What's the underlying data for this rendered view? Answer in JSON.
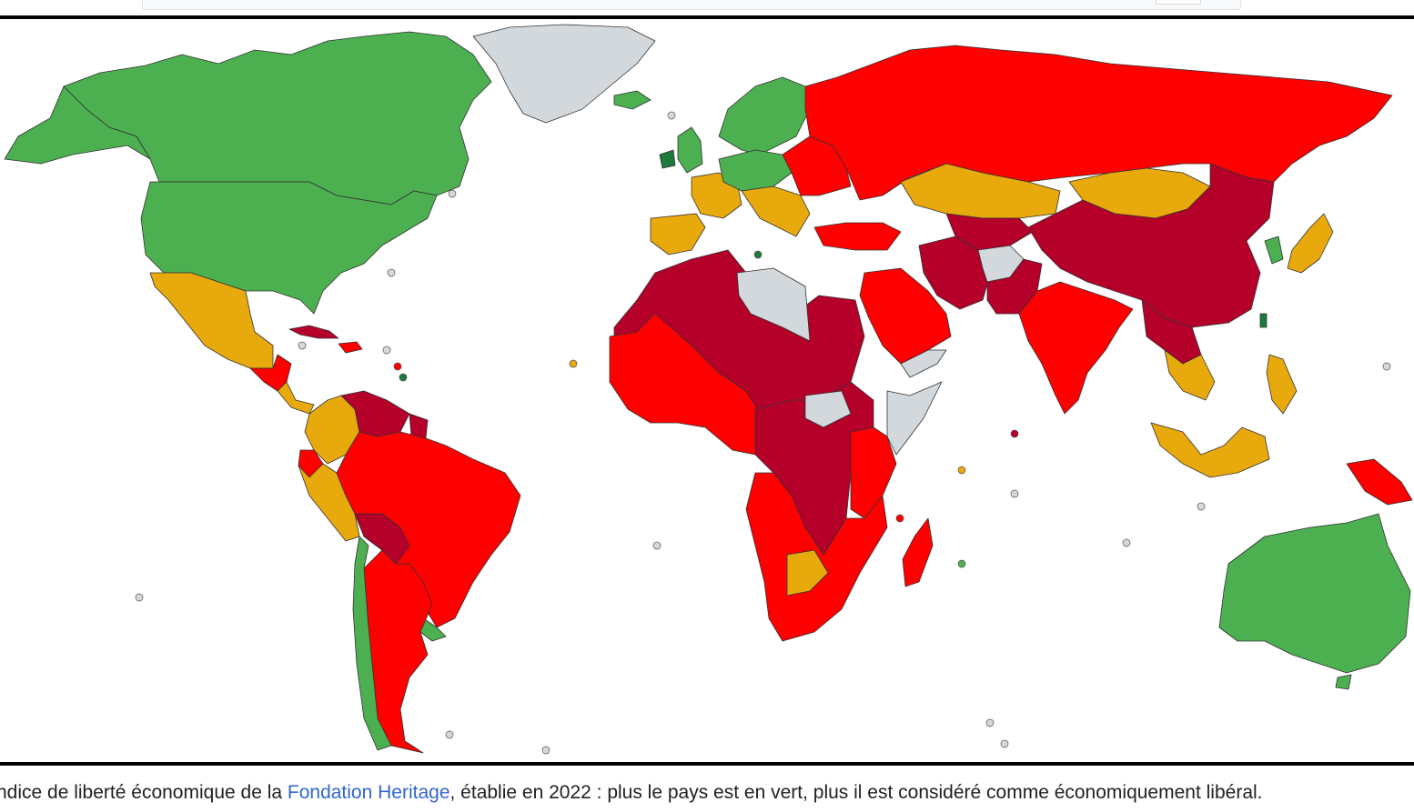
{
  "colors": {
    "free": "#4caf50",
    "mostly_free": "#1b7a3c",
    "moderately_free": "#e8a90c",
    "mostly_unfree": "#ff0000",
    "repressed": "#b5002a",
    "no_data": "#d3d8dc"
  },
  "caption": {
    "prefix": "ndice de liberté économique de la ",
    "link": "Fondation Heritage",
    "suffix": ", établie en 2022 : plus le pays est en vert, plus il est considéré comme économiquement libéral."
  }
}
